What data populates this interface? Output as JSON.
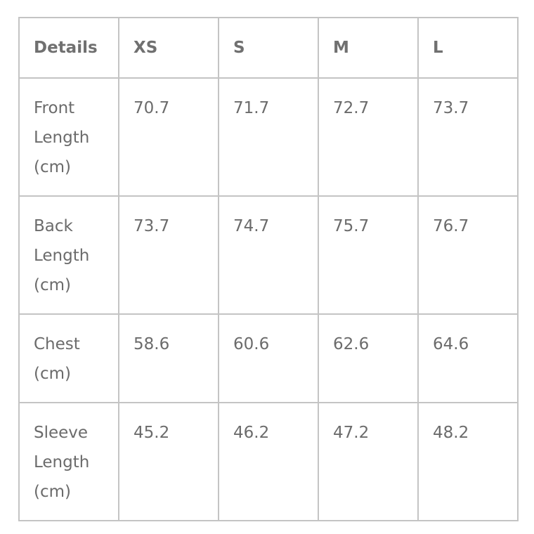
{
  "headers": [
    "Details",
    "XS",
    "S",
    "M",
    "L"
  ],
  "rows": [
    [
      "Front Length (cm)",
      "70.7",
      "71.7",
      "72.7",
      "73.7"
    ],
    [
      "Back Length (cm)",
      "73.7",
      "74.7",
      "75.7",
      "76.7"
    ],
    [
      "Chest (cm)",
      "58.6",
      "60.6",
      "62.6",
      "64.6"
    ],
    [
      "Sleeve Length (cm)",
      "45.2",
      "46.2",
      "47.2",
      "48.2"
    ]
  ]
}
